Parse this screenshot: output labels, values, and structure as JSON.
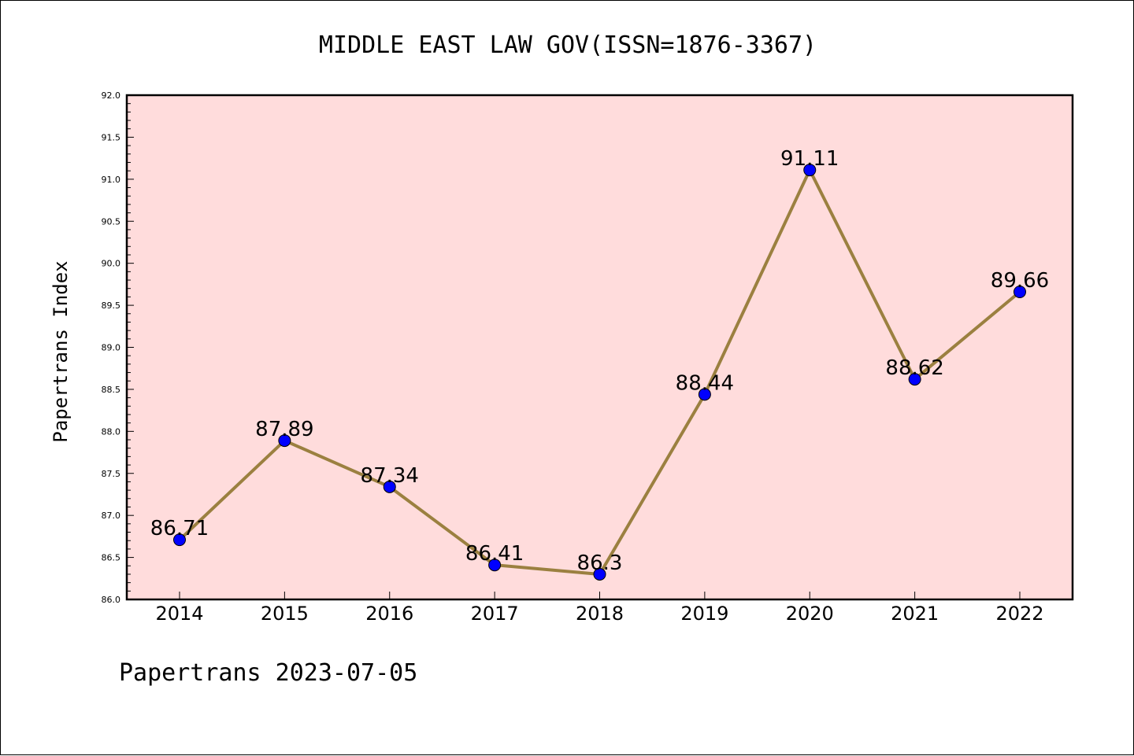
{
  "chart_data": {
    "type": "line",
    "title": "MIDDLE EAST LAW GOV(ISSN=1876-3367)",
    "xlabel": "",
    "ylabel": "Papertrans Index",
    "categories": [
      "2014",
      "2015",
      "2016",
      "2017",
      "2018",
      "2019",
      "2020",
      "2021",
      "2022"
    ],
    "values": [
      86.71,
      87.89,
      87.34,
      86.41,
      86.3,
      88.44,
      91.11,
      88.62,
      89.66
    ],
    "data_labels": [
      "86.71",
      "87.89",
      "87.34",
      "86.41",
      "86.3",
      "88.44",
      "91.11",
      "88.62",
      "89.66"
    ],
    "ylim": [
      86.0,
      92.0
    ],
    "yticks": [
      "86.0",
      "86.5",
      "87.0",
      "87.5",
      "88.0",
      "88.5",
      "89.0",
      "89.5",
      "90.0",
      "90.5",
      "91.0",
      "91.5",
      "92.0"
    ],
    "grid": false,
    "legend": "none",
    "colors": {
      "plot_background": "#ffdcdc",
      "line": "#9b8040",
      "marker": "#0000ff"
    }
  },
  "footer": "Papertrans 2023-07-05"
}
